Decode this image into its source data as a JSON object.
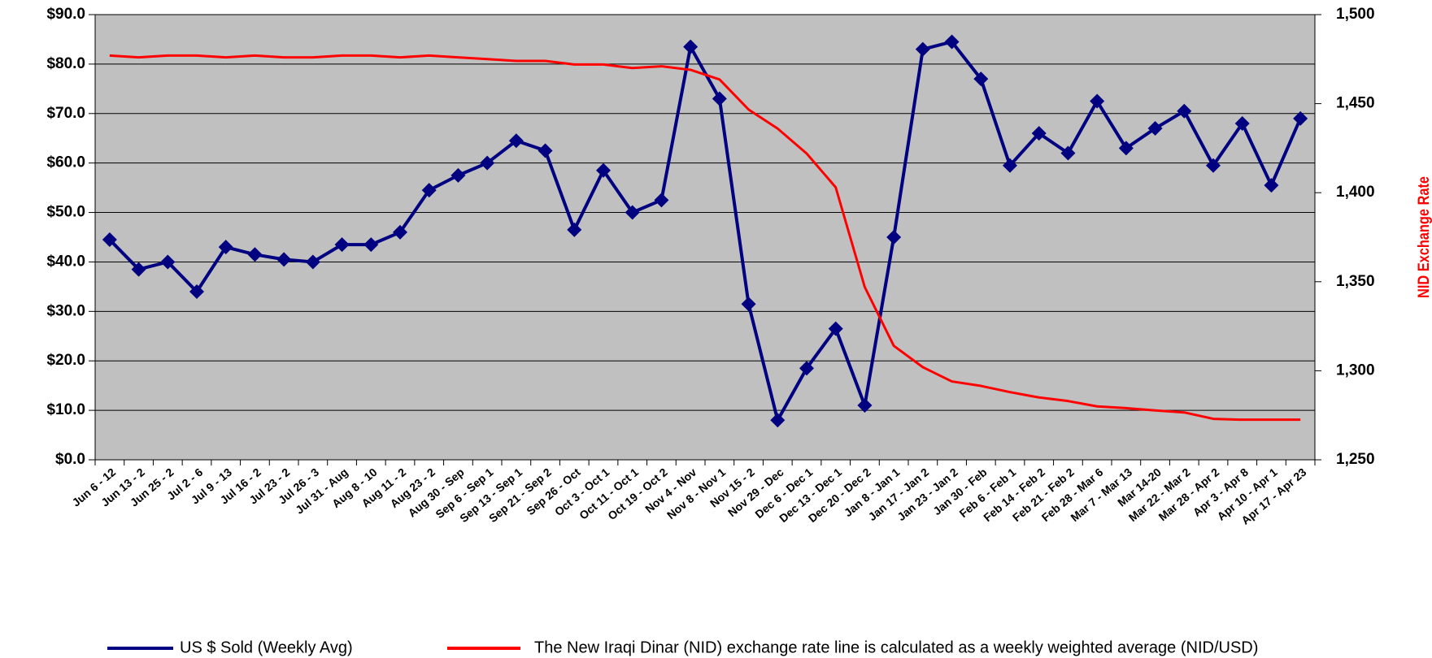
{
  "chart_data": {
    "type": "line",
    "categories": [
      "Jun 6 - 12",
      "Jun 13 - 2",
      "Jun 25 - 2",
      "Jul 2 - 6",
      "Jul 9 - 13",
      "Jul 16 - 2",
      "Jul 23 - 2",
      "Jul 26 - 3",
      "Jul 31 - Aug",
      "Aug 8 - 10",
      "Aug 11 - 2",
      "Aug 23 - 2",
      "Aug 30 - Sep",
      "Sep 6 - Sep 1",
      "Sep 13 - Sep 1",
      "Sep 21 - Sep 2",
      "Sep 26 - Oct",
      "Oct 3 - Oct 1",
      "Oct 11 - Oct 1",
      "Oct 19 - Oct 2",
      "Nov 4 - Nov",
      "Nov 8 - Nov 1",
      "Nov 15 - 2",
      "Nov 29 - Dec",
      "Dec 6 - Dec 1",
      "Dec 13 - Dec 1",
      "Dec 20 - Dec 2",
      "Jan 8 - Jan 1",
      "Jan 17 - Jan 2",
      "Jan 23 - Jan 2",
      "Jan 30 - Feb",
      "Feb 6 - Feb 1",
      "Feb 14 - Feb 2",
      "Feb 21 - Feb 2",
      "Feb 28 - Mar 6",
      "Mar 7 - Mar 13",
      "Mar 14-20",
      "Mar 22 - Mar 2",
      "Mar 28 - Apr 2",
      "Apr 3 - Apr 8",
      "Apr 10 - Apr 1",
      "Apr 17 - Apr 23"
    ],
    "series": [
      {
        "name": "US $ Sold (Weekly Avg)",
        "color": "#000080",
        "marker": "diamond",
        "values": [
          44.5,
          38.5,
          40,
          34,
          43,
          41.5,
          40.5,
          40,
          43.5,
          43.5,
          46,
          54.5,
          57.5,
          60,
          64.5,
          62.5,
          46.5,
          58.5,
          50,
          52.5,
          83.5,
          73,
          31.5,
          8,
          18.5,
          26.5,
          11,
          45,
          83,
          84.5,
          77,
          59.5,
          66,
          62,
          72.5,
          63,
          67,
          70.5,
          59.5,
          68,
          55.5,
          69
        ]
      },
      {
        "name": "The New Iraqi Dinar (NID) exchange rate line is calculated as a weekly weighted average (NID/USD)",
        "color": "#ff0000",
        "axis": "y2",
        "values": [
          1477,
          1476,
          1477,
          1477,
          1476,
          1477,
          1476,
          1476,
          1477,
          1477,
          1476,
          1477,
          1476,
          1475,
          1474,
          1474,
          1472,
          1472,
          1470,
          1471,
          1469,
          1463.6,
          1446.7,
          1436,
          1422,
          1403,
          1347,
          1314,
          1302,
          1294,
          1291.5,
          1288,
          1285,
          1283,
          1280,
          1279,
          1277.7,
          1276.6,
          1273,
          1272.5,
          1272.5,
          1272.5
        ]
      }
    ],
    "ylim": [
      0,
      90
    ],
    "yticks": [
      {
        "value": 0,
        "label": "$0.0"
      },
      {
        "value": 10,
        "label": "$10.0"
      },
      {
        "value": 20,
        "label": "$20.0"
      },
      {
        "value": 30,
        "label": "$30.0"
      },
      {
        "value": 40,
        "label": "$40.0"
      },
      {
        "value": 50,
        "label": "$50.0"
      },
      {
        "value": 60,
        "label": "$60.0"
      },
      {
        "value": 70,
        "label": "$70.0"
      },
      {
        "value": 80,
        "label": "$80.0"
      },
      {
        "value": 90,
        "label": "$90.0"
      }
    ],
    "y2lim": [
      1250,
      1500
    ],
    "y2ticks": [
      {
        "value": 1250,
        "label": "1,250"
      },
      {
        "value": 1300,
        "label": "1,300"
      },
      {
        "value": 1350,
        "label": "1,350"
      },
      {
        "value": 1400,
        "label": "1,400"
      },
      {
        "value": 1450,
        "label": "1,450"
      },
      {
        "value": 1500,
        "label": "1,500"
      }
    ],
    "y2label": "NID Exchange Rate",
    "y2label_color": "#ff0000",
    "plot_background": "#c0c0c0",
    "grid": true,
    "legend": "bottom"
  }
}
